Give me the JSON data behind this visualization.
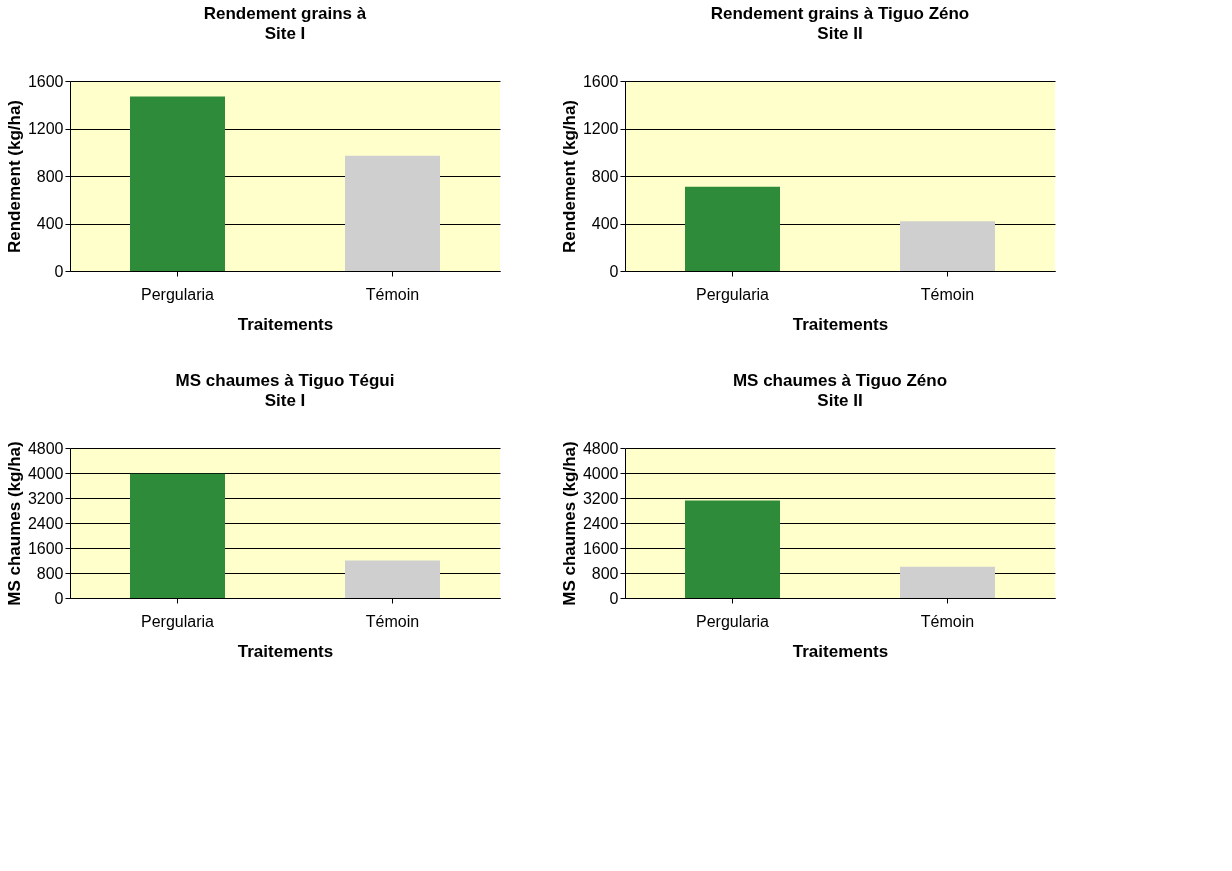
{
  "chart_data": [
    {
      "type": "bar",
      "title": "Rendement grains à",
      "subtitle": "Site I",
      "xlabel": "Traitements",
      "ylabel": "Rendement (kg/ha)",
      "categories": [
        "Pergularia",
        "Témoin"
      ],
      "values": [
        1470,
        970
      ],
      "colors": [
        "#2e8b3a",
        "#cfcfcf"
      ],
      "ylim": [
        0,
        1600
      ],
      "yticks": [
        0,
        400,
        800,
        1200,
        1600
      ],
      "grid": "y"
    },
    {
      "type": "bar",
      "title": "Rendement grains à Tiguo Zéno",
      "subtitle": "Site II",
      "xlabel": "Traitements",
      "ylabel": "Rendement (kg/ha)",
      "categories": [
        "Pergularia",
        "Témoin"
      ],
      "values": [
        710,
        420
      ],
      "colors": [
        "#2e8b3a",
        "#cfcfcf"
      ],
      "ylim": [
        0,
        1600
      ],
      "yticks": [
        0,
        400,
        800,
        1200,
        1600
      ],
      "grid": "y"
    },
    {
      "type": "bar",
      "title": "MS chaumes à Tiguo Tégui",
      "subtitle": "Site I",
      "xlabel": "Traitements",
      "ylabel": "MS chaumes (kg/ha)",
      "categories": [
        "Pergularia",
        "Témoin"
      ],
      "values": [
        3980,
        1200
      ],
      "colors": [
        "#2e8b3a",
        "#cfcfcf"
      ],
      "ylim": [
        0,
        4800
      ],
      "yticks": [
        0,
        800,
        1600,
        2400,
        3200,
        4000,
        4800
      ],
      "grid": "y"
    },
    {
      "type": "bar",
      "title": "MS chaumes à Tiguo Zéno",
      "subtitle": "Site II",
      "xlabel": "Traitements",
      "ylabel": "MS chaumes (kg/ha)",
      "categories": [
        "Pergularia",
        "Témoin"
      ],
      "values": [
        3120,
        1000
      ],
      "colors": [
        "#2e8b3a",
        "#cfcfcf"
      ],
      "ylim": [
        0,
        4800
      ],
      "yticks": [
        0,
        800,
        1600,
        2400,
        3200,
        4000,
        4800
      ],
      "grid": "y"
    }
  ]
}
